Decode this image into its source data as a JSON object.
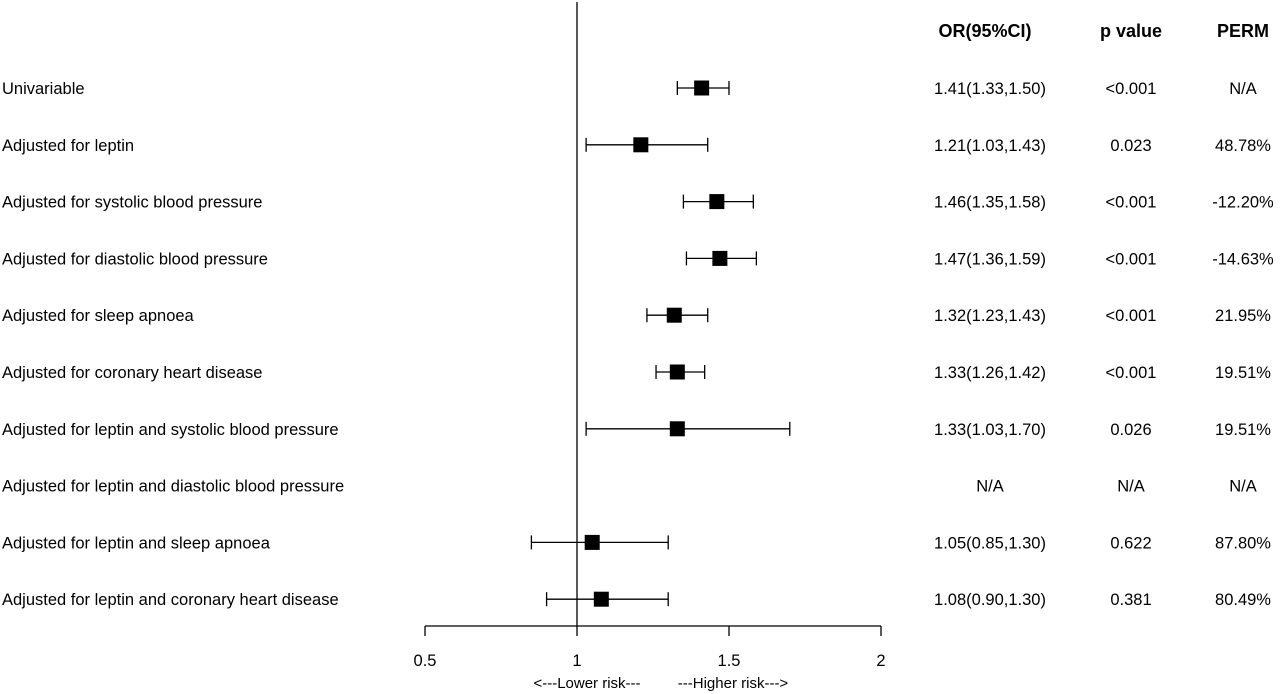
{
  "chart_data": {
    "type": "forest",
    "headers": {
      "or": "OR(95%CI)",
      "p": "p value",
      "perm": "PERM"
    },
    "reference_line": 1,
    "xlim": [
      0.5,
      2
    ],
    "x_ticks": [
      {
        "value": 0.5,
        "label": "0.5"
      },
      {
        "value": 1,
        "label": "1"
      },
      {
        "value": 1.5,
        "label": "1.5"
      },
      {
        "value": 2,
        "label": "2"
      }
    ],
    "risk_labels": {
      "lower": "<---Lower risk---",
      "higher": "---Higher risk--->"
    },
    "rows": [
      {
        "label": "Univariable",
        "or": 1.41,
        "lo": 1.33,
        "hi": 1.5,
        "or_text": "1.41(1.33,1.50)",
        "p": "<0.001",
        "perm": "N/A"
      },
      {
        "label": "Adjusted for leptin",
        "or": 1.21,
        "lo": 1.03,
        "hi": 1.43,
        "or_text": "1.21(1.03,1.43)",
        "p": "0.023",
        "perm": "48.78%"
      },
      {
        "label": "Adjusted for systolic blood pressure",
        "or": 1.46,
        "lo": 1.35,
        "hi": 1.58,
        "or_text": "1.46(1.35,1.58)",
        "p": "<0.001",
        "perm": "-12.20%"
      },
      {
        "label": "Adjusted for diastolic blood pressure",
        "or": 1.47,
        "lo": 1.36,
        "hi": 1.59,
        "or_text": "1.47(1.36,1.59)",
        "p": "<0.001",
        "perm": "-14.63%"
      },
      {
        "label": "Adjusted for sleep apnoea",
        "or": 1.32,
        "lo": 1.23,
        "hi": 1.43,
        "or_text": "1.32(1.23,1.43)",
        "p": "<0.001",
        "perm": "21.95%"
      },
      {
        "label": "Adjusted for coronary heart disease",
        "or": 1.33,
        "lo": 1.26,
        "hi": 1.42,
        "or_text": "1.33(1.26,1.42)",
        "p": "<0.001",
        "perm": "19.51%"
      },
      {
        "label": "Adjusted for leptin and systolic blood pressure",
        "or": 1.33,
        "lo": 1.03,
        "hi": 1.7,
        "or_text": "1.33(1.03,1.70)",
        "p": "0.026",
        "perm": "19.51%"
      },
      {
        "label": "Adjusted for leptin and diastolic blood pressure",
        "or": null,
        "lo": null,
        "hi": null,
        "or_text": "N/A",
        "p": "N/A",
        "perm": "N/A"
      },
      {
        "label": "Adjusted for leptin and sleep apnoea",
        "or": 1.05,
        "lo": 0.85,
        "hi": 1.3,
        "or_text": "1.05(0.85,1.30)",
        "p": "0.622",
        "perm": "87.80%"
      },
      {
        "label": "Adjusted for leptin and coronary heart disease",
        "or": 1.08,
        "lo": 0.9,
        "hi": 1.3,
        "or_text": "1.08(0.90,1.30)",
        "p": "0.381",
        "perm": "80.49%"
      }
    ]
  }
}
